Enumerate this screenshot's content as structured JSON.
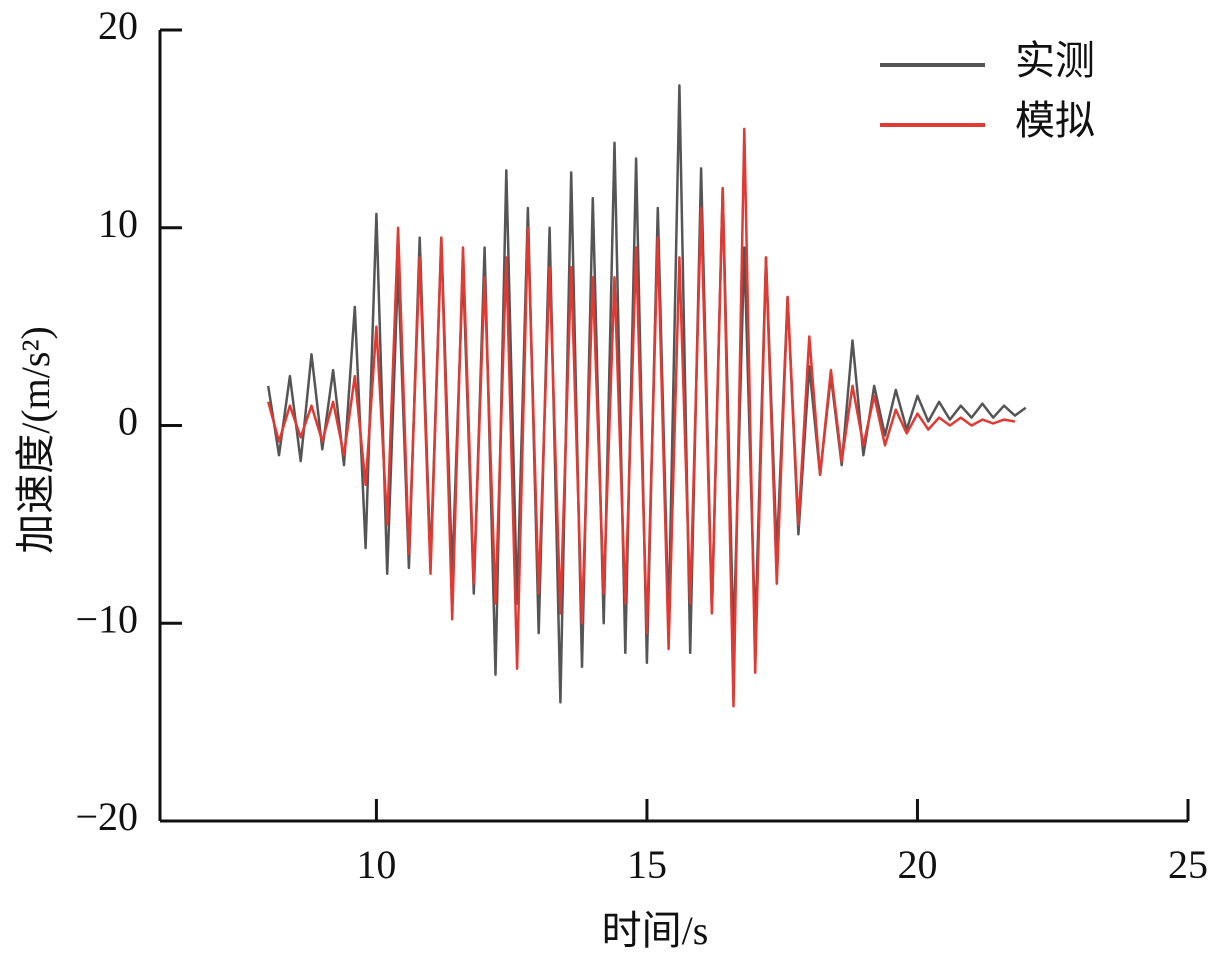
{
  "chart_data": {
    "type": "line",
    "x_label": "时间/s",
    "y_label": "加速度/(m/s²)",
    "x": [
      8.0,
      8.2,
      8.4,
      8.6,
      8.8,
      9.0,
      9.2,
      9.4,
      9.6,
      9.8,
      10.0,
      10.2,
      10.4,
      10.6,
      10.8,
      11.0,
      11.2,
      11.4,
      11.6,
      11.8,
      12.0,
      12.2,
      12.4,
      12.6,
      12.8,
      13.0,
      13.2,
      13.4,
      13.6,
      13.8,
      14.0,
      14.2,
      14.4,
      14.6,
      14.8,
      15.0,
      15.2,
      15.4,
      15.6,
      15.8,
      16.0,
      16.2,
      16.4,
      16.6,
      16.8,
      17.0,
      17.2,
      17.4,
      17.6,
      17.8,
      18.0,
      18.2,
      18.4,
      18.6,
      18.8,
      19.0,
      19.2,
      19.4,
      19.6,
      19.8,
      20.0,
      20.2,
      20.4,
      20.6,
      20.8,
      21.0,
      21.2,
      21.4,
      21.6,
      21.8,
      22.0
    ],
    "series": [
      {
        "name": "实测",
        "color": "#555555",
        "values": [
          2.0,
          -1.5,
          2.5,
          -1.8,
          3.6,
          -1.2,
          2.8,
          -2.0,
          6.0,
          -6.2,
          10.7,
          -7.5,
          8.0,
          -7.2,
          9.5,
          -7.0,
          9.5,
          -7.5,
          8.0,
          -8.5,
          9.0,
          -12.6,
          12.9,
          -9.0,
          11.0,
          -10.5,
          10.0,
          -14.0,
          12.8,
          -12.2,
          11.5,
          -10.0,
          14.3,
          -11.5,
          13.5,
          -12.0,
          11.0,
          -10.0,
          17.2,
          -11.5,
          13.0,
          -9.5,
          12.0,
          -11.0,
          9.0,
          -10.5,
          8.5,
          -6.5,
          6.5,
          -5.5,
          3.0,
          -2.5,
          2.5,
          -2.0,
          4.3,
          -1.5,
          2.0,
          -0.5,
          1.8,
          -0.2,
          1.5,
          0.2,
          1.2,
          0.3,
          1.0,
          0.4,
          1.1,
          0.4,
          1.0,
          0.5,
          0.9
        ]
      },
      {
        "name": "模拟",
        "color": "#e03a33",
        "values": [
          1.2,
          -0.8,
          1.0,
          -0.6,
          1.0,
          -0.8,
          1.2,
          -1.5,
          2.5,
          -3.0,
          5.0,
          -5.0,
          10.0,
          -6.5,
          8.5,
          -7.5,
          9.5,
          -9.8,
          9.0,
          -8.0,
          7.5,
          -9.0,
          8.5,
          -12.3,
          10.0,
          -8.5,
          8.0,
          -9.5,
          8.0,
          -10.0,
          7.5,
          -8.5,
          7.5,
          -9.0,
          9.0,
          -10.5,
          9.5,
          -11.3,
          8.5,
          -9.0,
          11.0,
          -9.5,
          12.0,
          -14.2,
          15.0,
          -12.5,
          8.5,
          -8.0,
          6.5,
          -5.0,
          4.5,
          -2.5,
          2.8,
          -1.8,
          2.0,
          -1.0,
          1.5,
          -1.0,
          0.8,
          -0.4,
          0.6,
          -0.2,
          0.4,
          0.0,
          0.4,
          0.0,
          0.3,
          0.1,
          0.3,
          0.2,
          null
        ]
      }
    ],
    "xlim": [
      6,
      25
    ],
    "ylim": [
      -20,
      20
    ],
    "xticks": [
      10,
      15,
      20,
      25
    ],
    "yticks": [
      {
        "value": -20,
        "label": "−20"
      },
      {
        "value": -10,
        "label": "−10"
      },
      0,
      10,
      20
    ],
    "legend": "upper right"
  }
}
